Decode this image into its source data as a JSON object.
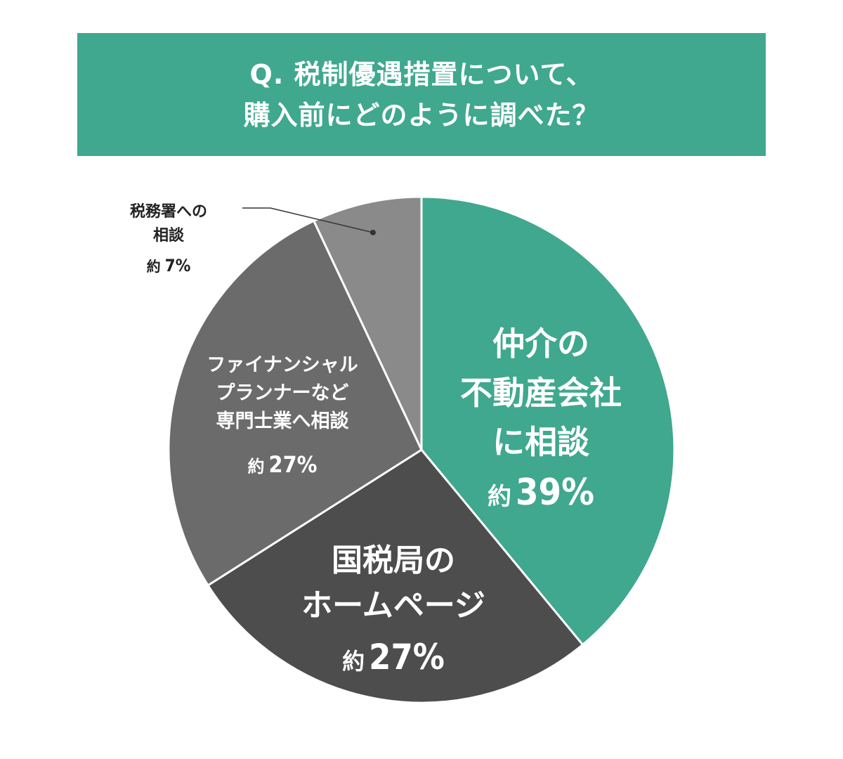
{
  "title": {
    "lines": [
      "Q. 税制優遇措置について、",
      "購入前にどのように調べた？"
    ],
    "background": "#3fa88f"
  },
  "chart_data": {
    "type": "pie",
    "title": "Q. 税制優遇措置について、購入前にどのように調べた？",
    "start_angle_deg": 0,
    "direction": "clockwise",
    "slices": [
      {
        "label_lines": [
          "仲介の",
          "不動産会社",
          "に相談"
        ],
        "prefix": "約",
        "value": 39,
        "display": "39%",
        "color": "#3fa88f"
      },
      {
        "label_lines": [
          "国税局の",
          "ホームページ"
        ],
        "prefix": "約",
        "value": 27,
        "display": "27%",
        "color": "#4d4d4d"
      },
      {
        "label_lines": [
          "ファイナンシャル",
          "プランナーなど",
          "専門士業へ相談"
        ],
        "prefix": "約",
        "value": 27,
        "display": "27%",
        "color": "#6b6b6b"
      },
      {
        "label_lines": [
          "税務署への",
          "相談"
        ],
        "prefix": "約",
        "value": 7,
        "display": "7%",
        "color": "#8a8a8a"
      }
    ]
  }
}
